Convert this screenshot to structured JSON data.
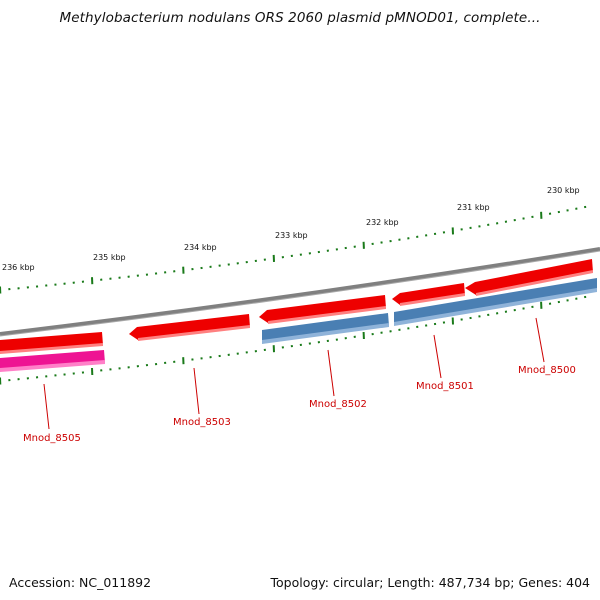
{
  "title": "Methylobacterium nodulans ORS 2060 plasmid pMNOD01, complete...",
  "footer": {
    "accession": "Accession: NC_011892",
    "summary": "Topology: circular; Length: 487,734 bp; Genes: 404"
  },
  "scale_labels": [
    "230 kbp",
    "231 kbp",
    "232 kbp",
    "233 kbp",
    "234 kbp",
    "235 kbp",
    "236 kbp"
  ],
  "genes": [
    {
      "label": "Mnod_8500",
      "strand": "reverse"
    },
    {
      "label": "Mnod_8501",
      "strand": "reverse"
    },
    {
      "label": "Mnod_8502",
      "strand": "reverse"
    },
    {
      "label": "Mnod_8503",
      "strand": "reverse"
    },
    {
      "label": "Mnod_8505",
      "strand": "reverse"
    }
  ],
  "colors": {
    "backbone": "#808080",
    "forward_cds": "#ee0000",
    "cds_blue": "#4a7fb3",
    "cds_pink": "#ee1493",
    "tick": "#1a7a1a",
    "label": "#cc0000"
  }
}
